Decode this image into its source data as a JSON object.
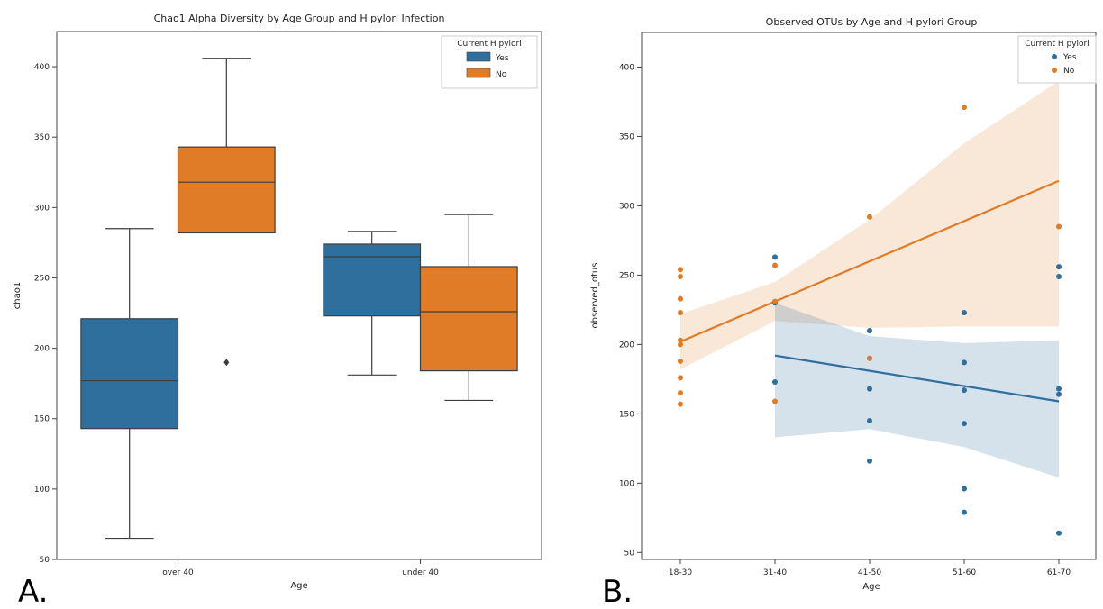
{
  "panels": {
    "a_label": "A.",
    "b_label": "B."
  },
  "chart_data": [
    {
      "type": "box",
      "title": "Chao1 Alpha Diversity by Age Group and H pylori Infection",
      "xlabel": "Age",
      "ylabel": "chao1",
      "categories": [
        "over 40",
        "under 40"
      ],
      "ylim": [
        50,
        425
      ],
      "yticks": [
        50,
        100,
        150,
        200,
        250,
        300,
        350,
        400
      ],
      "legend": {
        "title": "Current H pylori",
        "position": "top-right"
      },
      "grid": false,
      "series": [
        {
          "name": "Yes",
          "color": "#2e6f9e",
          "boxes": [
            {
              "category": "over 40",
              "min": 65,
              "q1": 143,
              "median": 177,
              "q3": 221,
              "max": 285,
              "outliers": []
            },
            {
              "category": "under 40",
              "min": 181,
              "q1": 223,
              "median": 265,
              "q3": 274,
              "max": 283,
              "outliers": []
            }
          ]
        },
        {
          "name": "No",
          "color": "#e07b27",
          "boxes": [
            {
              "category": "over 40",
              "min": 282,
              "q1": 282,
              "median": 318,
              "q3": 343,
              "max": 406,
              "outliers": [
                190
              ]
            },
            {
              "category": "under 40",
              "min": 163,
              "q1": 184,
              "median": 226,
              "q3": 258,
              "max": 295,
              "outliers": []
            }
          ]
        }
      ]
    },
    {
      "type": "scatter",
      "title": "Observed OTUs by Age and H pylori Group",
      "xlabel": "Age",
      "ylabel": "observed_otus",
      "categories": [
        "18-30",
        "31-40",
        "41-50",
        "51-60",
        "61-70"
      ],
      "ylim": [
        45,
        425
      ],
      "yticks": [
        50,
        100,
        150,
        200,
        250,
        300,
        350,
        400
      ],
      "legend": {
        "title": "Current H pylori",
        "position": "top-right"
      },
      "grid": false,
      "series": [
        {
          "name": "Yes",
          "color": "#2e6f9e",
          "points": [
            {
              "x": "31-40",
              "y": 263
            },
            {
              "x": "31-40",
              "y": 230
            },
            {
              "x": "31-40",
              "y": 173
            },
            {
              "x": "41-50",
              "y": 210
            },
            {
              "x": "41-50",
              "y": 190
            },
            {
              "x": "41-50",
              "y": 168
            },
            {
              "x": "41-50",
              "y": 145
            },
            {
              "x": "41-50",
              "y": 116
            },
            {
              "x": "51-60",
              "y": 223
            },
            {
              "x": "51-60",
              "y": 187
            },
            {
              "x": "51-60",
              "y": 167
            },
            {
              "x": "51-60",
              "y": 143
            },
            {
              "x": "51-60",
              "y": 96
            },
            {
              "x": "51-60",
              "y": 79
            },
            {
              "x": "61-70",
              "y": 256
            },
            {
              "x": "61-70",
              "y": 249
            },
            {
              "x": "61-70",
              "y": 168
            },
            {
              "x": "61-70",
              "y": 164
            },
            {
              "x": "61-70",
              "y": 64
            }
          ],
          "fit": {
            "x": [
              "31-40",
              "61-70"
            ],
            "y": [
              192,
              159
            ]
          },
          "ci": [
            {
              "x": "31-40",
              "upper": 230,
              "lower": 133
            },
            {
              "x": "41-50",
              "upper": 206,
              "lower": 139
            },
            {
              "x": "51-60",
              "upper": 201,
              "lower": 126
            },
            {
              "x": "61-70",
              "upper": 203,
              "lower": 104
            }
          ]
        },
        {
          "name": "No",
          "color": "#e07b27",
          "points": [
            {
              "x": "18-30",
              "y": 254
            },
            {
              "x": "18-30",
              "y": 249
            },
            {
              "x": "18-30",
              "y": 233
            },
            {
              "x": "18-30",
              "y": 223
            },
            {
              "x": "18-30",
              "y": 203
            },
            {
              "x": "18-30",
              "y": 200
            },
            {
              "x": "18-30",
              "y": 188
            },
            {
              "x": "18-30",
              "y": 176
            },
            {
              "x": "18-30",
              "y": 165
            },
            {
              "x": "18-30",
              "y": 157
            },
            {
              "x": "31-40",
              "y": 257
            },
            {
              "x": "31-40",
              "y": 231
            },
            {
              "x": "31-40",
              "y": 159
            },
            {
              "x": "41-50",
              "y": 292
            },
            {
              "x": "41-50",
              "y": 190
            },
            {
              "x": "51-60",
              "y": 371
            },
            {
              "x": "61-70",
              "y": 285
            }
          ],
          "fit": {
            "x": [
              "18-30",
              "61-70"
            ],
            "y": [
              202,
              318
            ]
          },
          "ci": [
            {
              "x": "18-30",
              "upper": 222,
              "lower": 182
            },
            {
              "x": "31-40",
              "upper": 245,
              "lower": 217
            },
            {
              "x": "41-50",
              "upper": 290,
              "lower": 212
            },
            {
              "x": "51-60",
              "upper": 345,
              "lower": 213
            },
            {
              "x": "61-70",
              "upper": 390,
              "lower": 213
            }
          ]
        }
      ]
    }
  ]
}
